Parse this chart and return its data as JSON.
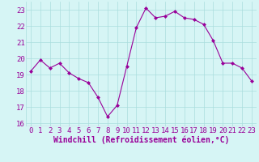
{
  "x": [
    0,
    1,
    2,
    3,
    4,
    5,
    6,
    7,
    8,
    9,
    10,
    11,
    12,
    13,
    14,
    15,
    16,
    17,
    18,
    19,
    20,
    21,
    22,
    23
  ],
  "y": [
    19.2,
    19.9,
    19.4,
    19.7,
    19.1,
    18.75,
    18.5,
    17.6,
    16.4,
    17.1,
    19.5,
    21.9,
    23.1,
    22.5,
    22.6,
    22.9,
    22.5,
    22.4,
    22.1,
    21.1,
    19.7,
    19.7,
    19.4,
    18.6
  ],
  "line_color": "#990099",
  "marker": "D",
  "marker_size": 2,
  "bg_color": "#d6f5f5",
  "grid_color": "#aadddd",
  "xlabel": "Windchill (Refroidissement éolien,°C)",
  "xlabel_color": "#990099",
  "tick_color": "#990099",
  "ylim": [
    15.8,
    23.5
  ],
  "xlim": [
    -0.5,
    23.5
  ],
  "yticks": [
    16,
    17,
    18,
    19,
    20,
    21,
    22,
    23
  ],
  "xticks": [
    0,
    1,
    2,
    3,
    4,
    5,
    6,
    7,
    8,
    9,
    10,
    11,
    12,
    13,
    14,
    15,
    16,
    17,
    18,
    19,
    20,
    21,
    22,
    23
  ],
  "tick_fontsize": 6.5,
  "xlabel_fontsize": 7
}
